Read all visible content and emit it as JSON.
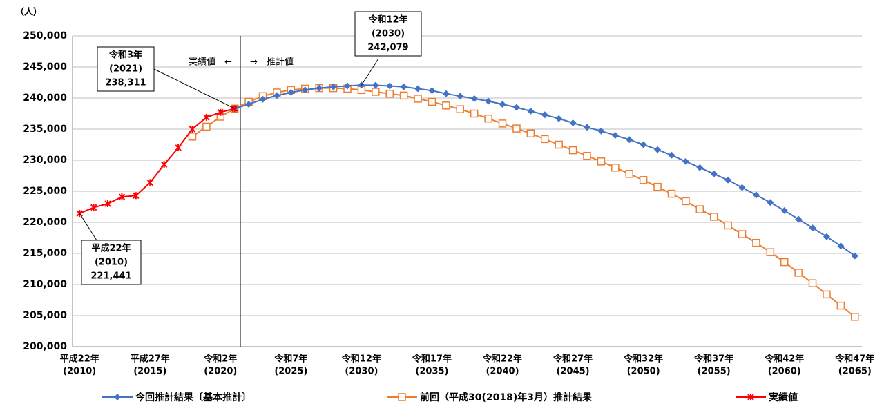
{
  "chart_data": {
    "type": "line",
    "y_unit": "（人）",
    "categories": [
      [
        "平成22年",
        "(2010)"
      ],
      null,
      null,
      null,
      null,
      [
        "平成27年",
        "(2015)"
      ],
      null,
      null,
      null,
      null,
      [
        "令和2年",
        "(2020)"
      ],
      null,
      null,
      null,
      null,
      [
        "令和7年",
        "(2025)"
      ],
      null,
      null,
      null,
      null,
      [
        "令和12年",
        "(2030)"
      ],
      null,
      null,
      null,
      null,
      [
        "令和17年",
        "(2035)"
      ],
      null,
      null,
      null,
      null,
      [
        "令和22年",
        "(2040)"
      ],
      null,
      null,
      null,
      null,
      [
        "令和27年",
        "(2045)"
      ],
      null,
      null,
      null,
      null,
      [
        "令和32年",
        "(2050)"
      ],
      null,
      null,
      null,
      null,
      [
        "令和37年",
        "(2055)"
      ],
      null,
      null,
      null,
      null,
      [
        "令和42年",
        "(2060)"
      ],
      null,
      null,
      null,
      null,
      [
        "令和47年",
        "(2065)"
      ]
    ],
    "ylim": [
      200000,
      250000
    ],
    "yticks": [
      {
        "value": 200000,
        "label": "200,000"
      },
      {
        "value": 205000,
        "label": "205,000"
      },
      {
        "value": 210000,
        "label": "210,000"
      },
      {
        "value": 215000,
        "label": "215,000"
      },
      {
        "value": 220000,
        "label": "220,000"
      },
      {
        "value": 225000,
        "label": "225,000"
      },
      {
        "value": 230000,
        "label": "230,000"
      },
      {
        "value": 235000,
        "label": "235,000"
      },
      {
        "value": 240000,
        "label": "240,000"
      },
      {
        "value": 245000,
        "label": "245,000"
      },
      {
        "value": 250000,
        "label": "250,000"
      }
    ],
    "grid": true,
    "series": [
      {
        "name": "今回推計結果〔基本推計〕",
        "color": "#4472c4",
        "marker": "diamond",
        "values": [
          null,
          null,
          null,
          null,
          null,
          null,
          null,
          null,
          null,
          null,
          null,
          238311,
          239000,
          239800,
          240400,
          240900,
          241300,
          241600,
          241800,
          241950,
          242079,
          242050,
          241950,
          241800,
          241500,
          241200,
          240700,
          240300,
          239900,
          239500,
          239000,
          238500,
          237900,
          237300,
          236700,
          236000,
          235300,
          234700,
          234000,
          233300,
          232500,
          231700,
          230800,
          229800,
          228800,
          227800,
          226800,
          225600,
          224400,
          223200,
          221900,
          220500,
          219100,
          217700,
          216200,
          214600
        ]
      },
      {
        "name": "前回（平成30(2018)年3月）推計結果",
        "color": "#ed7d31",
        "marker": "square",
        "values": [
          null,
          null,
          null,
          null,
          null,
          null,
          null,
          null,
          233800,
          235400,
          237000,
          238300,
          239400,
          240300,
          240900,
          241300,
          241500,
          241600,
          241600,
          241500,
          241300,
          241000,
          240700,
          240400,
          239900,
          239400,
          238800,
          238200,
          237500,
          236700,
          235900,
          235100,
          234300,
          233400,
          232500,
          231600,
          230700,
          229800,
          228800,
          227800,
          226800,
          225700,
          224600,
          223400,
          222100,
          220900,
          219500,
          218100,
          216700,
          215200,
          213600,
          211900,
          210200,
          208400,
          206600,
          204800
        ]
      },
      {
        "name": "実績値",
        "color": "#ff0000",
        "marker": "star",
        "values": [
          221441,
          222400,
          223000,
          224100,
          224300,
          226400,
          229300,
          232000,
          235000,
          236900,
          237700,
          238311,
          null,
          null,
          null,
          null,
          null,
          null,
          null,
          null,
          null,
          null,
          null,
          null,
          null,
          null,
          null,
          null,
          null,
          null,
          null,
          null,
          null,
          null,
          null,
          null,
          null,
          null,
          null,
          null,
          null,
          null,
          null,
          null,
          null,
          null,
          null,
          null,
          null,
          null,
          null,
          null,
          null,
          null,
          null,
          null
        ]
      }
    ],
    "divider_labels": [
      "実績値　←",
      "→　推計値"
    ],
    "annotations": [
      {
        "lines": [
          "平成22年",
          "(2010)",
          "221,441"
        ]
      },
      {
        "lines": [
          "令和3年",
          "(2021)",
          "238,311"
        ]
      },
      {
        "lines": [
          "令和12年",
          "(2030)",
          "242,079"
        ]
      }
    ]
  }
}
